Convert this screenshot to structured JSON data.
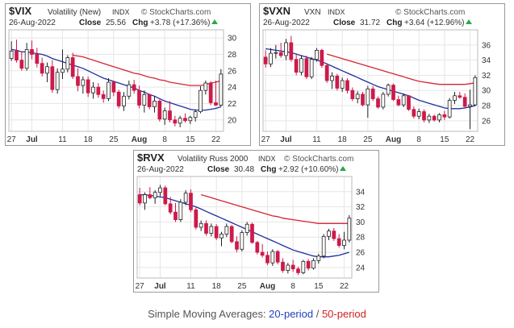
{
  "colors": {
    "up_candle": "#ffffff",
    "down_candle": "#cc1a4a",
    "sma20": "#1f2fa0",
    "sma50": "#d42535",
    "grid": "#e6e6e6",
    "chg_arrow": "#2aa84a"
  },
  "footer": {
    "prefix": "Simple Moving Averages: ",
    "sma20_label": "20-period",
    "separator": " / ",
    "sma50_label": "50-period"
  },
  "chart_data": [
    {
      "type": "candlestick",
      "symbol": "$VIX",
      "name": "Volatility (New)",
      "exchange": "INDX",
      "source": "© StockCharts.com",
      "date": "26-Aug-2022",
      "close_label": "Close",
      "close": "25.56",
      "chg_label": "Chg",
      "chg": "+3.78 (+17.36%)",
      "ylim": [
        18.6,
        31
      ],
      "yticks": [
        20,
        22,
        24,
        26,
        28,
        30
      ],
      "xticks": [
        "27",
        "Jul",
        "11",
        "18",
        "25",
        "Aug",
        "8",
        "15",
        "22"
      ],
      "xtick_index": [
        0,
        4,
        10,
        15,
        20,
        25,
        30,
        35,
        40
      ],
      "ohlc": [
        [
          27.5,
          29.6,
          27.2,
          28.4
        ],
        [
          28.4,
          29.8,
          27.0,
          27.3
        ],
        [
          27.3,
          28.4,
          26.0,
          26.3
        ],
        [
          26.3,
          29.4,
          26.0,
          28.6
        ],
        [
          28.6,
          29.7,
          27.4,
          28.0
        ],
        [
          28.0,
          28.8,
          26.4,
          26.9
        ],
        [
          26.9,
          27.6,
          25.3,
          25.7
        ],
        [
          25.7,
          27.0,
          24.6,
          26.5
        ],
        [
          26.5,
          27.3,
          23.3,
          23.7
        ],
        [
          23.7,
          26.3,
          23.2,
          25.8
        ],
        [
          25.8,
          28.6,
          25.0,
          26.2
        ],
        [
          26.2,
          27.9,
          25.8,
          27.6
        ],
        [
          27.6,
          28.2,
          25.0,
          25.3
        ],
        [
          25.3,
          26.3,
          23.5,
          24.2
        ],
        [
          24.2,
          25.3,
          23.2,
          24.9
        ],
        [
          24.9,
          25.3,
          22.8,
          23.3
        ],
        [
          23.3,
          24.6,
          22.6,
          24.0
        ],
        [
          24.0,
          24.5,
          22.7,
          23.1
        ],
        [
          23.1,
          23.6,
          22.1,
          22.6
        ],
        [
          22.6,
          25.1,
          22.3,
          24.6
        ],
        [
          24.6,
          24.8,
          22.9,
          23.4
        ],
        [
          23.4,
          23.7,
          21.4,
          21.7
        ],
        [
          21.7,
          23.4,
          21.1,
          22.9
        ],
        [
          22.9,
          24.8,
          22.5,
          24.3
        ],
        [
          24.3,
          24.9,
          23.2,
          23.6
        ],
        [
          23.6,
          24.2,
          21.4,
          21.8
        ],
        [
          21.8,
          23.6,
          20.9,
          23.1
        ],
        [
          23.1,
          23.2,
          21.3,
          21.6
        ],
        [
          21.6,
          22.9,
          20.9,
          22.3
        ],
        [
          22.3,
          22.5,
          19.8,
          20.1
        ],
        [
          20.1,
          21.5,
          19.4,
          21.1
        ],
        [
          21.1,
          22.3,
          19.7,
          20.0
        ],
        [
          20.0,
          20.5,
          19.2,
          19.6
        ],
        [
          19.6,
          20.5,
          19.1,
          20.2
        ],
        [
          20.2,
          20.8,
          19.7,
          19.9
        ],
        [
          19.9,
          20.5,
          19.5,
          20.3
        ],
        [
          20.3,
          21.3,
          19.8,
          21.0
        ],
        [
          21.0,
          24.1,
          20.8,
          23.6
        ],
        [
          23.6,
          24.8,
          23.1,
          24.5
        ],
        [
          24.5,
          24.7,
          21.8,
          22.1
        ],
        [
          22.1,
          24.8,
          21.7,
          21.8
        ],
        [
          21.8,
          26.2,
          21.6,
          25.6
        ]
      ],
      "sma20": [
        28.6,
        28.5,
        28.3,
        28.3,
        28.2,
        28.1,
        28.0,
        27.8,
        27.5,
        27.3,
        27.1,
        26.9,
        26.7,
        26.5,
        26.3,
        26.0,
        25.7,
        25.4,
        25.1,
        24.9,
        24.7,
        24.5,
        24.3,
        24.1,
        23.9,
        23.6,
        23.4,
        23.1,
        22.9,
        22.6,
        22.3,
        22.1,
        21.9,
        21.7,
        21.5,
        21.3,
        21.2,
        21.2,
        21.2,
        21.3,
        21.4,
        21.6
      ],
      "sma50": [
        null,
        null,
        null,
        null,
        null,
        null,
        null,
        null,
        null,
        null,
        null,
        null,
        27.9,
        27.8,
        27.7,
        27.5,
        27.3,
        27.1,
        26.9,
        26.7,
        26.5,
        26.3,
        26.1,
        25.9,
        25.7,
        25.6,
        25.4,
        25.2,
        25.1,
        24.9,
        24.8,
        24.6,
        24.5,
        24.4,
        24.3,
        24.2,
        24.2,
        24.2,
        24.3,
        24.5,
        24.6,
        24.8
      ]
    },
    {
      "type": "candlestick",
      "symbol": "$VXN",
      "name": "VXN",
      "exchange": "INDX",
      "source": "© StockCharts.com",
      "date": "26-Aug-2022",
      "close_label": "Close",
      "close": "31.72",
      "chg_label": "Chg",
      "chg": "+3.64 (+12.96%)",
      "ylim": [
        24.6,
        38
      ],
      "yticks": [
        26,
        28,
        30,
        32,
        34,
        36
      ],
      "xticks": [
        "27",
        "Jul",
        "11",
        "18",
        "25",
        "Aug",
        "8",
        "15",
        "22"
      ],
      "xtick_index": [
        0,
        4,
        10,
        15,
        20,
        25,
        30,
        35,
        40
      ],
      "ohlc": [
        [
          34.4,
          35.3,
          33.0,
          33.5
        ],
        [
          33.5,
          35.6,
          33.1,
          34.9
        ],
        [
          34.9,
          36.0,
          34.2,
          35.0
        ],
        [
          35.0,
          36.3,
          34.3,
          34.6
        ],
        [
          34.6,
          36.8,
          34.0,
          36.3
        ],
        [
          36.3,
          37.2,
          33.8,
          34.1
        ],
        [
          34.1,
          34.9,
          32.0,
          32.4
        ],
        [
          32.4,
          34.6,
          32.0,
          34.2
        ],
        [
          34.2,
          34.6,
          31.5,
          31.8
        ],
        [
          31.8,
          34.4,
          31.5,
          34.1
        ],
        [
          34.1,
          35.6,
          33.8,
          35.3
        ],
        [
          35.3,
          35.5,
          33.0,
          33.3
        ],
        [
          33.3,
          33.6,
          31.0,
          31.3
        ],
        [
          31.3,
          32.4,
          30.2,
          31.9
        ],
        [
          31.9,
          32.2,
          30.0,
          30.3
        ],
        [
          30.3,
          31.7,
          29.8,
          31.3
        ],
        [
          31.3,
          31.6,
          29.6,
          30.0
        ],
        [
          30.0,
          30.4,
          28.6,
          28.9
        ],
        [
          28.9,
          29.9,
          28.3,
          29.5
        ],
        [
          29.5,
          29.8,
          27.9,
          28.1
        ],
        [
          28.1,
          30.6,
          26.4,
          30.2
        ],
        [
          30.2,
          30.6,
          28.6,
          28.9
        ],
        [
          28.9,
          29.2,
          27.6,
          27.8
        ],
        [
          27.8,
          29.8,
          27.5,
          29.5
        ],
        [
          29.5,
          30.9,
          29.2,
          30.7
        ],
        [
          30.7,
          30.9,
          28.6,
          28.8
        ],
        [
          28.8,
          29.3,
          27.9,
          28.1
        ],
        [
          28.1,
          29.6,
          27.8,
          29.3
        ],
        [
          29.3,
          29.4,
          27.3,
          27.5
        ],
        [
          27.5,
          27.9,
          26.3,
          26.6
        ],
        [
          26.6,
          27.6,
          26.2,
          27.2
        ],
        [
          27.2,
          27.5,
          25.8,
          26.1
        ],
        [
          26.1,
          26.9,
          25.7,
          26.6
        ],
        [
          26.6,
          26.8,
          25.9,
          26.1
        ],
        [
          26.1,
          27.0,
          25.8,
          26.8
        ],
        [
          26.8,
          27.3,
          26.1,
          26.5
        ],
        [
          26.5,
          29.0,
          26.3,
          28.7
        ],
        [
          28.7,
          29.8,
          28.2,
          29.3
        ],
        [
          29.3,
          29.8,
          28.9,
          29.1
        ],
        [
          29.1,
          29.6,
          27.6,
          27.9
        ],
        [
          27.9,
          30.1,
          24.9,
          28.1
        ],
        [
          28.1,
          32.0,
          27.9,
          31.7
        ]
      ],
      "sma20": [
        35.5,
        35.4,
        35.3,
        35.2,
        35.1,
        35.0,
        34.8,
        34.6,
        34.4,
        34.2,
        34.0,
        33.8,
        33.5,
        33.2,
        32.9,
        32.6,
        32.3,
        32.0,
        31.7,
        31.4,
        31.1,
        30.8,
        30.5,
        30.3,
        30.1,
        29.9,
        29.7,
        29.5,
        29.3,
        29.0,
        28.7,
        28.5,
        28.3,
        28.1,
        27.9,
        27.7,
        27.6,
        27.6,
        27.6,
        27.7,
        27.8,
        28.0
      ],
      "sma50": [
        null,
        null,
        null,
        null,
        null,
        null,
        null,
        null,
        null,
        null,
        null,
        null,
        34.8,
        34.6,
        34.4,
        34.2,
        34.0,
        33.8,
        33.6,
        33.4,
        33.2,
        33.0,
        32.8,
        32.6,
        32.4,
        32.2,
        32.0,
        31.8,
        31.6,
        31.4,
        31.2,
        31.1,
        31.0,
        30.9,
        30.8,
        30.8,
        30.8,
        30.8,
        30.8,
        30.8,
        30.9,
        31.0
      ]
    },
    {
      "type": "candlestick",
      "symbol": "$RVX",
      "name": "Volatility Russ 2000",
      "exchange": "INDX",
      "source": "© StockCharts.com",
      "date": "26-Aug-2022",
      "close_label": "Close",
      "close": "30.48",
      "chg_label": "Chg",
      "chg": "+2.92 (+10.60%)",
      "ylim": [
        22.6,
        36
      ],
      "yticks": [
        24,
        26,
        28,
        30,
        32,
        34
      ],
      "xticks": [
        "27",
        "Jul",
        "11",
        "18",
        "25",
        "Aug",
        "8",
        "15",
        "22"
      ],
      "xtick_index": [
        0,
        4,
        10,
        15,
        20,
        25,
        30,
        35,
        40
      ],
      "ohlc": [
        [
          33.6,
          34.5,
          32.2,
          32.5
        ],
        [
          32.5,
          33.9,
          31.6,
          33.6
        ],
        [
          33.6,
          34.6,
          33.0,
          33.2
        ],
        [
          33.2,
          34.2,
          32.4,
          33.9
        ],
        [
          33.9,
          34.9,
          33.4,
          34.5
        ],
        [
          34.5,
          34.8,
          32.2,
          32.4
        ],
        [
          32.4,
          33.3,
          31.0,
          31.3
        ],
        [
          31.3,
          32.5,
          30.0,
          30.3
        ],
        [
          30.3,
          33.0,
          30.0,
          32.6
        ],
        [
          32.6,
          34.2,
          32.2,
          33.8
        ],
        [
          33.8,
          34.3,
          31.3,
          31.6
        ],
        [
          31.6,
          31.9,
          29.0,
          29.3
        ],
        [
          29.3,
          30.2,
          28.8,
          29.8
        ],
        [
          29.8,
          30.2,
          28.2,
          28.5
        ],
        [
          28.5,
          29.8,
          28.1,
          29.4
        ],
        [
          29.4,
          29.7,
          27.6,
          27.9
        ],
        [
          27.9,
          28.7,
          26.8,
          28.4
        ],
        [
          28.4,
          29.8,
          28.0,
          29.4
        ],
        [
          29.4,
          29.6,
          27.2,
          27.4
        ],
        [
          27.4,
          28.1,
          26.0,
          26.4
        ],
        [
          26.4,
          28.9,
          26.1,
          28.6
        ],
        [
          28.6,
          30.0,
          28.2,
          29.7
        ],
        [
          29.7,
          29.9,
          27.1,
          27.3
        ],
        [
          27.3,
          27.5,
          25.7,
          26.0
        ],
        [
          26.0,
          27.1,
          25.3,
          25.6
        ],
        [
          25.6,
          26.1,
          24.3,
          24.6
        ],
        [
          24.6,
          26.4,
          24.2,
          26.1
        ],
        [
          26.1,
          26.3,
          24.4,
          24.7
        ],
        [
          24.7,
          25.2,
          23.3,
          23.6
        ],
        [
          23.6,
          24.6,
          23.2,
          24.3
        ],
        [
          24.3,
          25.0,
          23.4,
          23.8
        ],
        [
          23.8,
          24.1,
          23.0,
          23.3
        ],
        [
          23.3,
          25.0,
          23.1,
          24.8
        ],
        [
          24.8,
          25.1,
          23.6,
          23.9
        ],
        [
          23.9,
          25.2,
          23.7,
          24.9
        ],
        [
          24.9,
          25.8,
          24.5,
          25.5
        ],
        [
          25.5,
          28.4,
          25.2,
          28.1
        ],
        [
          28.1,
          29.1,
          27.6,
          28.8
        ],
        [
          28.8,
          29.2,
          27.5,
          27.8
        ],
        [
          27.8,
          28.4,
          26.6,
          26.9
        ],
        [
          26.9,
          28.7,
          26.4,
          27.6
        ],
        [
          27.6,
          30.9,
          27.3,
          30.5
        ]
      ],
      "sma20": [
        33.6,
        33.6,
        33.5,
        33.4,
        33.3,
        33.2,
        33.0,
        32.8,
        32.6,
        32.4,
        32.2,
        32.0,
        31.7,
        31.4,
        31.1,
        30.8,
        30.5,
        30.2,
        29.9,
        29.6,
        29.3,
        29.0,
        28.7,
        28.4,
        28.1,
        27.8,
        27.5,
        27.2,
        26.9,
        26.6,
        26.3,
        26.1,
        25.9,
        25.7,
        25.5,
        25.4,
        25.4,
        25.4,
        25.5,
        25.6,
        25.8,
        26.0
      ],
      "sma50": [
        null,
        null,
        null,
        null,
        null,
        null,
        null,
        null,
        null,
        null,
        null,
        null,
        33.6,
        33.4,
        33.2,
        33.0,
        32.8,
        32.6,
        32.4,
        32.2,
        32.0,
        31.8,
        31.6,
        31.4,
        31.2,
        31.0,
        30.8,
        30.7,
        30.5,
        30.4,
        30.3,
        30.2,
        30.1,
        30.0,
        29.9,
        29.8,
        29.8,
        29.8,
        29.8,
        29.8,
        29.8,
        29.8
      ]
    }
  ]
}
